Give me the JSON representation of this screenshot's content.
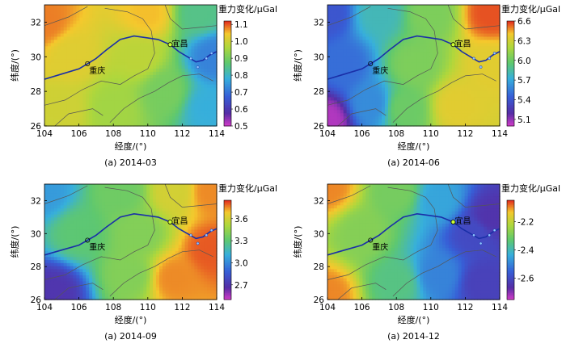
{
  "chart_data": [
    {
      "type": "heatmap",
      "caption": "(a) 2014-03",
      "xlabel": "经度/(°)",
      "ylabel": "纬度/(°)",
      "colorbar_title": "重力变化/μGal",
      "xlim": [
        104,
        114
      ],
      "ylim": [
        26,
        33
      ],
      "xticks": [
        "104",
        "106",
        "108",
        "110",
        "112",
        "114"
      ],
      "yticks": [
        "26",
        "28",
        "30",
        "32"
      ],
      "colorbar_range": [
        0.5,
        1.12
      ],
      "colorbar_ticks": [
        "1.1",
        "1.0",
        "0.9",
        "0.8",
        "0.7",
        "0.6",
        "0.5"
      ],
      "cities": [
        {
          "name": "重庆",
          "x": 106.5,
          "y": 29.6
        },
        {
          "name": "宜昌",
          "x": 111.3,
          "y": 30.7
        }
      ],
      "field": [
        {
          "x": 104,
          "y": 32,
          "value": 1.08
        },
        {
          "x": 110,
          "y": 32.5,
          "value": 1.05
        },
        {
          "x": 113,
          "y": 32.5,
          "value": 0.85
        },
        {
          "x": 113.8,
          "y": 30,
          "value": 0.72
        },
        {
          "x": 113.5,
          "y": 27,
          "value": 0.78
        },
        {
          "x": 111,
          "y": 28,
          "value": 0.9
        },
        {
          "x": 108,
          "y": 27,
          "value": 0.95
        },
        {
          "x": 105,
          "y": 27,
          "value": 1.0
        },
        {
          "x": 105.5,
          "y": 30,
          "value": 1.02
        },
        {
          "x": 109.5,
          "y": 30,
          "value": 0.98
        }
      ]
    },
    {
      "type": "heatmap",
      "caption": "(a) 2014-06",
      "xlabel": "经度/(°)",
      "ylabel": "纬度/(°)",
      "colorbar_title": "重力变化/μGal",
      "xlim": [
        104,
        114
      ],
      "ylim": [
        26,
        33
      ],
      "xticks": [
        "104",
        "106",
        "108",
        "110",
        "112",
        "114"
      ],
      "yticks": [
        "26",
        "28",
        "30",
        "32"
      ],
      "colorbar_range": [
        5.0,
        6.6
      ],
      "colorbar_ticks": [
        "6.6",
        "6.3",
        "6.0",
        "5.7",
        "5.4",
        "5.1"
      ],
      "cities": [
        {
          "name": "重庆",
          "x": 106.5,
          "y": 29.6
        },
        {
          "name": "宜昌",
          "x": 111.3,
          "y": 30.7
        }
      ],
      "field": [
        {
          "x": 104,
          "y": 32.5,
          "value": 5.4
        },
        {
          "x": 104,
          "y": 26.3,
          "value": 5.05
        },
        {
          "x": 105,
          "y": 29.5,
          "value": 5.5
        },
        {
          "x": 107,
          "y": 32.5,
          "value": 5.8
        },
        {
          "x": 110,
          "y": 32.5,
          "value": 6.05
        },
        {
          "x": 113.5,
          "y": 32.5,
          "value": 6.55
        },
        {
          "x": 113.5,
          "y": 29.5,
          "value": 6.35
        },
        {
          "x": 111.5,
          "y": 27.2,
          "value": 6.35
        },
        {
          "x": 108.5,
          "y": 27,
          "value": 6.0
        },
        {
          "x": 109,
          "y": 29.5,
          "value": 6.05
        },
        {
          "x": 106.5,
          "y": 27.3,
          "value": 5.6
        }
      ]
    },
    {
      "type": "heatmap",
      "caption": "(a) 2014-09",
      "xlabel": "经度/(°)",
      "ylabel": "纬度/(°)",
      "colorbar_title": "重力变化/μGal",
      "xlim": [
        104,
        114
      ],
      "ylim": [
        26,
        33
      ],
      "xticks": [
        "104",
        "106",
        "108",
        "110",
        "112",
        "114"
      ],
      "yticks": [
        "26",
        "28",
        "30",
        "32"
      ],
      "colorbar_range": [
        2.5,
        3.85
      ],
      "colorbar_ticks": [
        "3.6",
        "3.3",
        "3.0",
        "2.7"
      ],
      "cities": [
        {
          "name": "重庆",
          "x": 106.5,
          "y": 29.6
        },
        {
          "name": "宜昌",
          "x": 111.3,
          "y": 30.7
        }
      ],
      "field": [
        {
          "x": 104,
          "y": 32.5,
          "value": 3.05
        },
        {
          "x": 104.5,
          "y": 26.5,
          "value": 2.7
        },
        {
          "x": 106,
          "y": 30,
          "value": 3.3
        },
        {
          "x": 108.5,
          "y": 32.5,
          "value": 3.35
        },
        {
          "x": 111.5,
          "y": 32.5,
          "value": 3.6
        },
        {
          "x": 113.7,
          "y": 32.5,
          "value": 3.75
        },
        {
          "x": 113.7,
          "y": 29,
          "value": 3.8
        },
        {
          "x": 111.5,
          "y": 27.3,
          "value": 3.75
        },
        {
          "x": 109,
          "y": 27.5,
          "value": 3.4
        },
        {
          "x": 109.5,
          "y": 30,
          "value": 3.4
        }
      ]
    },
    {
      "type": "heatmap",
      "caption": "(a) 2014-12",
      "xlabel": "经度/(°)",
      "ylabel": "纬度/(°)",
      "colorbar_title": "重力变化/μGal",
      "xlim": [
        104,
        114
      ],
      "ylim": [
        26,
        33
      ],
      "xticks": [
        "104",
        "106",
        "108",
        "110",
        "112",
        "114"
      ],
      "yticks": [
        "26",
        "28",
        "30",
        "32"
      ],
      "colorbar_range": [
        -2.75,
        -2.05
      ],
      "colorbar_ticks": [
        "-2.2",
        "-2.4",
        "-2.6"
      ],
      "cities": [
        {
          "name": "重庆",
          "x": 106.5,
          "y": 29.6
        },
        {
          "name": "宜昌",
          "x": 111.3,
          "y": 30.7
        }
      ],
      "field": [
        {
          "x": 104,
          "y": 32.8,
          "value": -2.1
        },
        {
          "x": 104,
          "y": 26.3,
          "value": -2.1
        },
        {
          "x": 106,
          "y": 30,
          "value": -2.28
        },
        {
          "x": 108,
          "y": 32.5,
          "value": -2.3
        },
        {
          "x": 110.5,
          "y": 32,
          "value": -2.45
        },
        {
          "x": 112.5,
          "y": 30,
          "value": -2.6
        },
        {
          "x": 113.5,
          "y": 31,
          "value": -2.65
        },
        {
          "x": 113,
          "y": 27,
          "value": -2.62
        },
        {
          "x": 110.5,
          "y": 27.5,
          "value": -2.5
        },
        {
          "x": 108,
          "y": 27,
          "value": -2.35
        }
      ]
    }
  ]
}
